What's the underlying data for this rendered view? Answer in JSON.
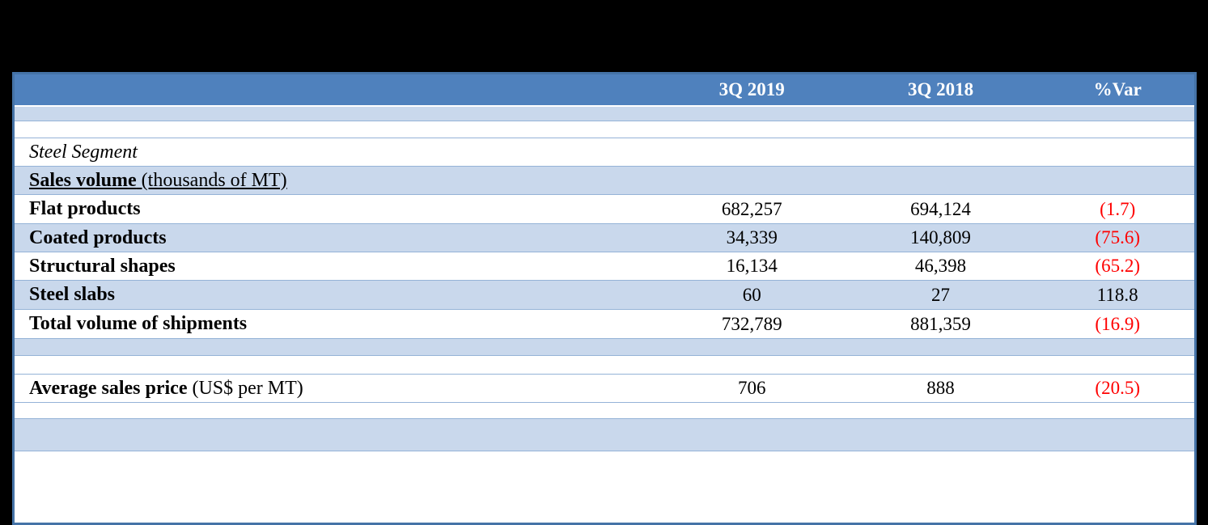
{
  "header": {
    "col_q1": "3Q 2019",
    "col_q2": "3Q 2018",
    "col_var": "%Var"
  },
  "rows": {
    "steel_segment": {
      "label": "Steel Segment"
    },
    "sales_volume": {
      "label": "Sales volume",
      "suffix": " (thousands of MT)"
    },
    "flat_products": {
      "label": "Flat products",
      "q1": "682,257",
      "q2": "694,124",
      "var": "(1.7)"
    },
    "coated_products": {
      "label": "Coated products",
      "q1": "34,339",
      "q2": "140,809",
      "var": "(75.6)"
    },
    "structural_shapes": {
      "label": "Structural shapes",
      "q1": "16,134",
      "q2": "46,398",
      "var": "(65.2)"
    },
    "steel_slabs": {
      "label": "Steel slabs",
      "q1": "60",
      "q2": "27",
      "var": "118.8"
    },
    "total_volume": {
      "label": "Total volume of shipments",
      "q1": "732,789",
      "q2": "881,359",
      "var": "(16.9)"
    },
    "avg_price": {
      "label": "Average sales price",
      "suffix": " (US$ per MT)",
      "q1": "706",
      "q2": "888",
      "var": "(20.5)"
    }
  },
  "colors": {
    "header_bg": "#4f81bd",
    "band_bg": "#c9d8ec",
    "grid_line": "#95b3d7",
    "outer_border": "#4573a7",
    "negative": "#ff0000"
  }
}
